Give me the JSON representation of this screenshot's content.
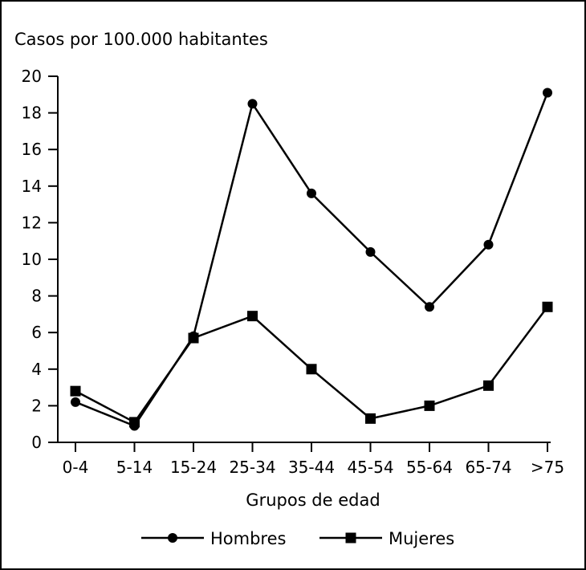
{
  "chart_data": {
    "type": "line",
    "title": "",
    "ylabel": "Casos por 100.000 habitantes",
    "xlabel": "Grupos de edad",
    "categories": [
      "0-4",
      "5-14",
      "15-24",
      "25-34",
      "35-44",
      "45-54",
      "55-64",
      "65-74",
      ">75"
    ],
    "ylim": [
      0,
      20
    ],
    "yticks": [
      0,
      2,
      4,
      6,
      8,
      10,
      12,
      14,
      16,
      18,
      20
    ],
    "grid": false,
    "legend_position": "bottom",
    "series": [
      {
        "name": "Hombres",
        "marker": "circle",
        "values": [
          2.2,
          0.9,
          5.8,
          18.5,
          13.6,
          10.4,
          7.4,
          10.8,
          19.1
        ]
      },
      {
        "name": "Mujeres",
        "marker": "square",
        "values": [
          2.8,
          1.1,
          5.7,
          6.9,
          4.0,
          1.3,
          2.0,
          3.1,
          7.4
        ]
      }
    ],
    "line_color": "#000000"
  }
}
